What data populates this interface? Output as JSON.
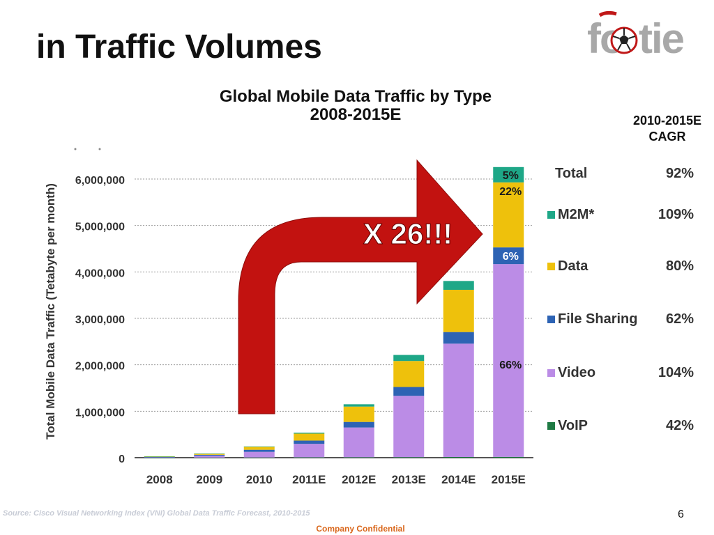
{
  "slide": {
    "title": "in Traffic Volumes",
    "page_number": "6",
    "confidential": "Company Confidential",
    "source": "Source: Cisco Visual Networking Index (VNI) Global Data Traffic Forecast, 2010-2015"
  },
  "logo": {
    "text": "footie",
    "icon": "soccer-ball-icon",
    "color": "#a8a8a8"
  },
  "cagr_header": {
    "line1": "2010-2015E",
    "line2": "CAGR"
  },
  "colors": {
    "Video": "#bb8ce6",
    "File Sharing": "#2d63b4",
    "Data": "#eec10c",
    "M2M*": "#1ea787",
    "VoIP": "#1f7a44",
    "arrow": "#c21210"
  },
  "chart_data": {
    "type": "bar",
    "stacked": true,
    "title": "Global Mobile Data Traffic by Type",
    "subtitle": "2008-2015E",
    "ylabel": "Total Mobile Data Traffic (Tetabyte per month)",
    "ylim": [
      0,
      6000000
    ],
    "yticks": [
      "0",
      "1,000,000",
      "2,000,000",
      "3,000,000",
      "4,000,000",
      "5,000,000",
      "6,000,000"
    ],
    "categories": [
      "2008",
      "2009",
      "2010",
      "2011E",
      "2012E",
      "2013E",
      "2014E",
      "2015E"
    ],
    "series": [
      {
        "name": "VoIP",
        "values": [
          1000,
          2000,
          5000,
          8000,
          10000,
          12000,
          15000,
          18000
        ]
      },
      {
        "name": "Video",
        "values": [
          10000,
          40000,
          120000,
          290000,
          640000,
          1320000,
          2440000,
          4150000
        ]
      },
      {
        "name": "File Sharing",
        "values": [
          5000,
          20000,
          45000,
          70000,
          120000,
          190000,
          250000,
          360000
        ]
      },
      {
        "name": "Data",
        "values": [
          14000,
          25000,
          65000,
          150000,
          330000,
          560000,
          910000,
          1400000
        ]
      },
      {
        "name": "M2M*",
        "values": [
          1000,
          2000,
          6000,
          20000,
          50000,
          130000,
          190000,
          330000
        ]
      }
    ],
    "annotations": {
      "arrow_label": "X 26!!!",
      "bar_2015_labels": [
        "5%",
        "22%",
        "6%",
        "66%"
      ]
    },
    "legend": {
      "position": "right",
      "total_row": {
        "label": "Total",
        "cagr": "92%"
      },
      "items": [
        {
          "name": "M2M*",
          "cagr": "109%"
        },
        {
          "name": "Data",
          "cagr": "80%"
        },
        {
          "name": "File Sharing",
          "cagr": "62%"
        },
        {
          "name": "Video",
          "cagr": "104%"
        },
        {
          "name": "VoIP",
          "cagr": "42%"
        }
      ]
    },
    "grid": true
  }
}
